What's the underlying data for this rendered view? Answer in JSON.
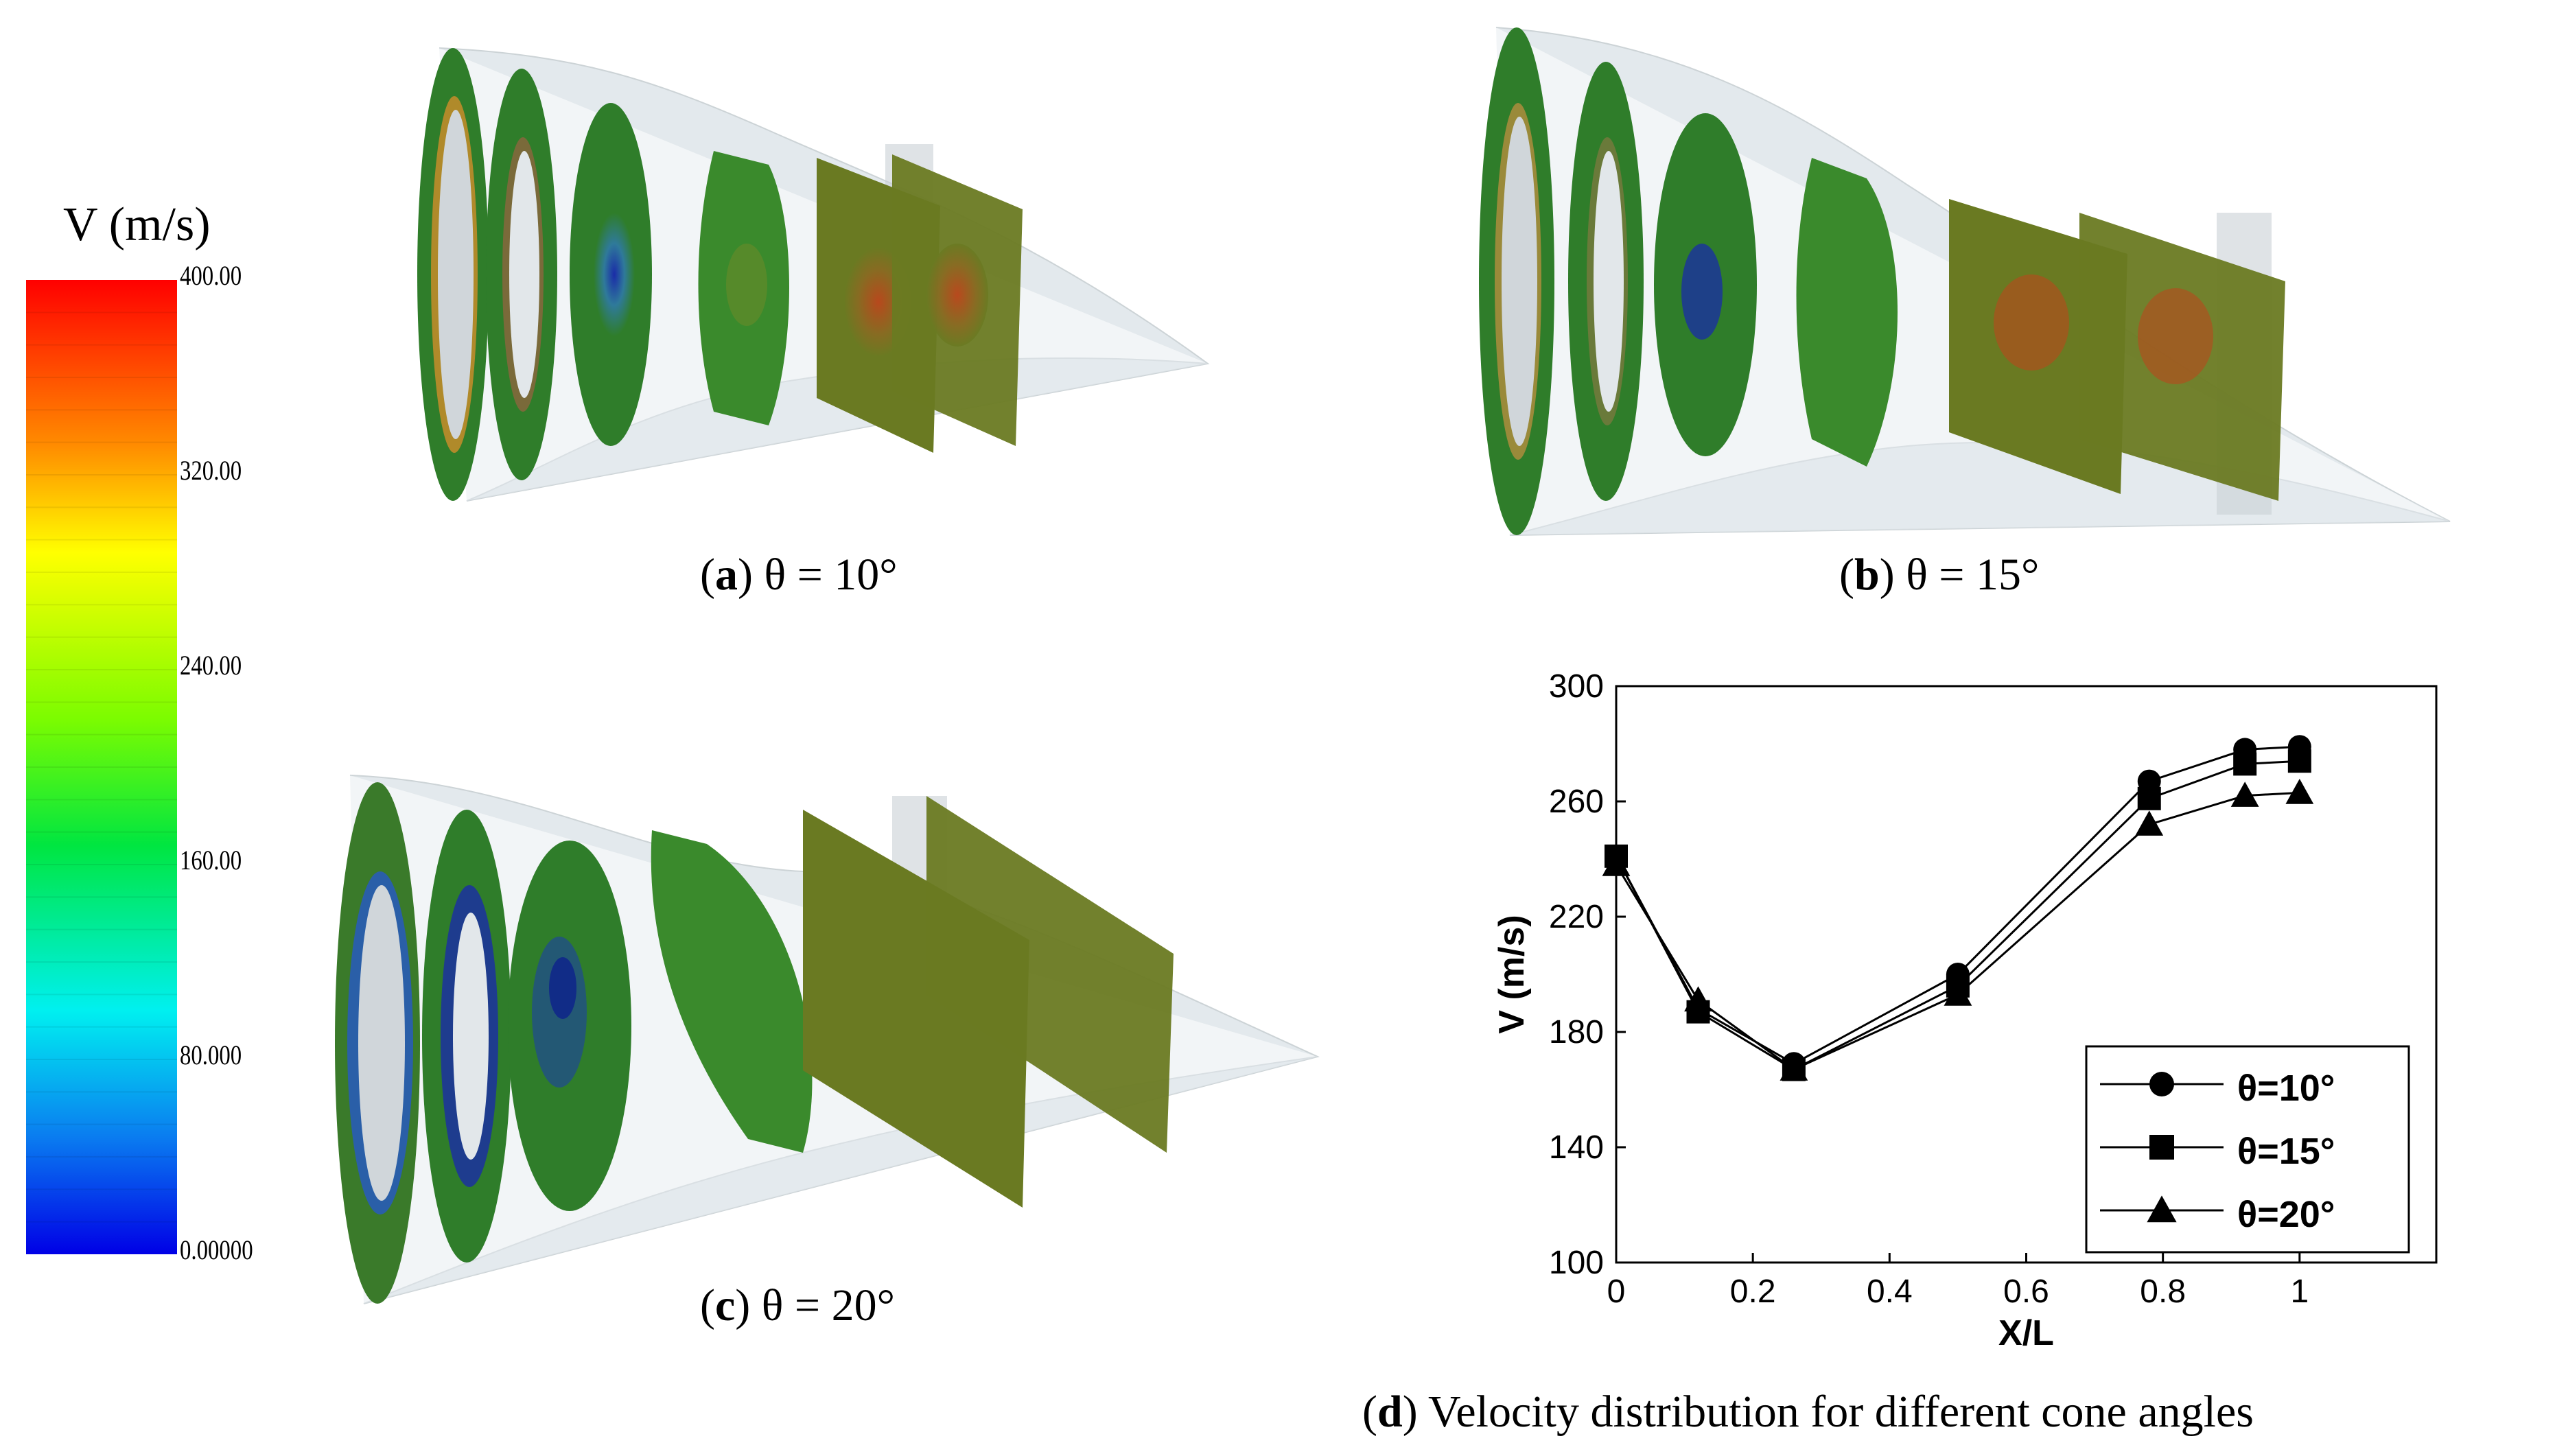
{
  "colorbar": {
    "title": "V (m/s)",
    "ticks": [
      "400.00",
      "320.00",
      "240.00",
      "160.00",
      "80.000",
      "0.00000"
    ]
  },
  "panels": {
    "a": {
      "letter": "a",
      "label": "θ = 10°"
    },
    "b": {
      "letter": "b",
      "label": "θ = 15°"
    },
    "c": {
      "letter": "c",
      "label": "θ = 20°"
    },
    "d": {
      "letter": "d",
      "label": "Velocity distribution for different cone angles"
    }
  },
  "colors": {
    "field_green": "#2f7d2a",
    "field_olive": "#6a7a22",
    "hot": "#c0431c",
    "cold": "#1a2ca8",
    "shell": "#dfe6ea"
  },
  "chart_data": {
    "type": "line",
    "xlabel": "X/L",
    "ylabel": "V (m/s)",
    "xlim": [
      0,
      1.2
    ],
    "ylim": [
      100,
      300
    ],
    "xticks": [
      0,
      0.2,
      0.4,
      0.6,
      0.8,
      1
    ],
    "xtick_labels": [
      "0",
      "0.2",
      "0.4",
      "0.6",
      "0.8",
      "1"
    ],
    "yticks": [
      100,
      140,
      180,
      220,
      260,
      300
    ],
    "ytick_labels": [
      "100",
      "140",
      "180",
      "220",
      "260",
      "300"
    ],
    "grid": false,
    "legend_position": "bottom-right",
    "x": [
      0,
      0.12,
      0.26,
      0.5,
      0.78,
      0.92,
      1.0
    ],
    "series": [
      {
        "name": "θ=10°",
        "marker": "circle",
        "values": [
          241,
          188,
          169,
          200,
          267,
          278,
          279
        ]
      },
      {
        "name": "θ=15°",
        "marker": "square",
        "values": [
          241,
          187,
          167,
          196,
          261,
          273,
          274
        ]
      },
      {
        "name": "θ=20°",
        "marker": "triangle",
        "values": [
          238,
          191,
          167,
          193,
          252,
          262,
          263
        ]
      }
    ]
  }
}
